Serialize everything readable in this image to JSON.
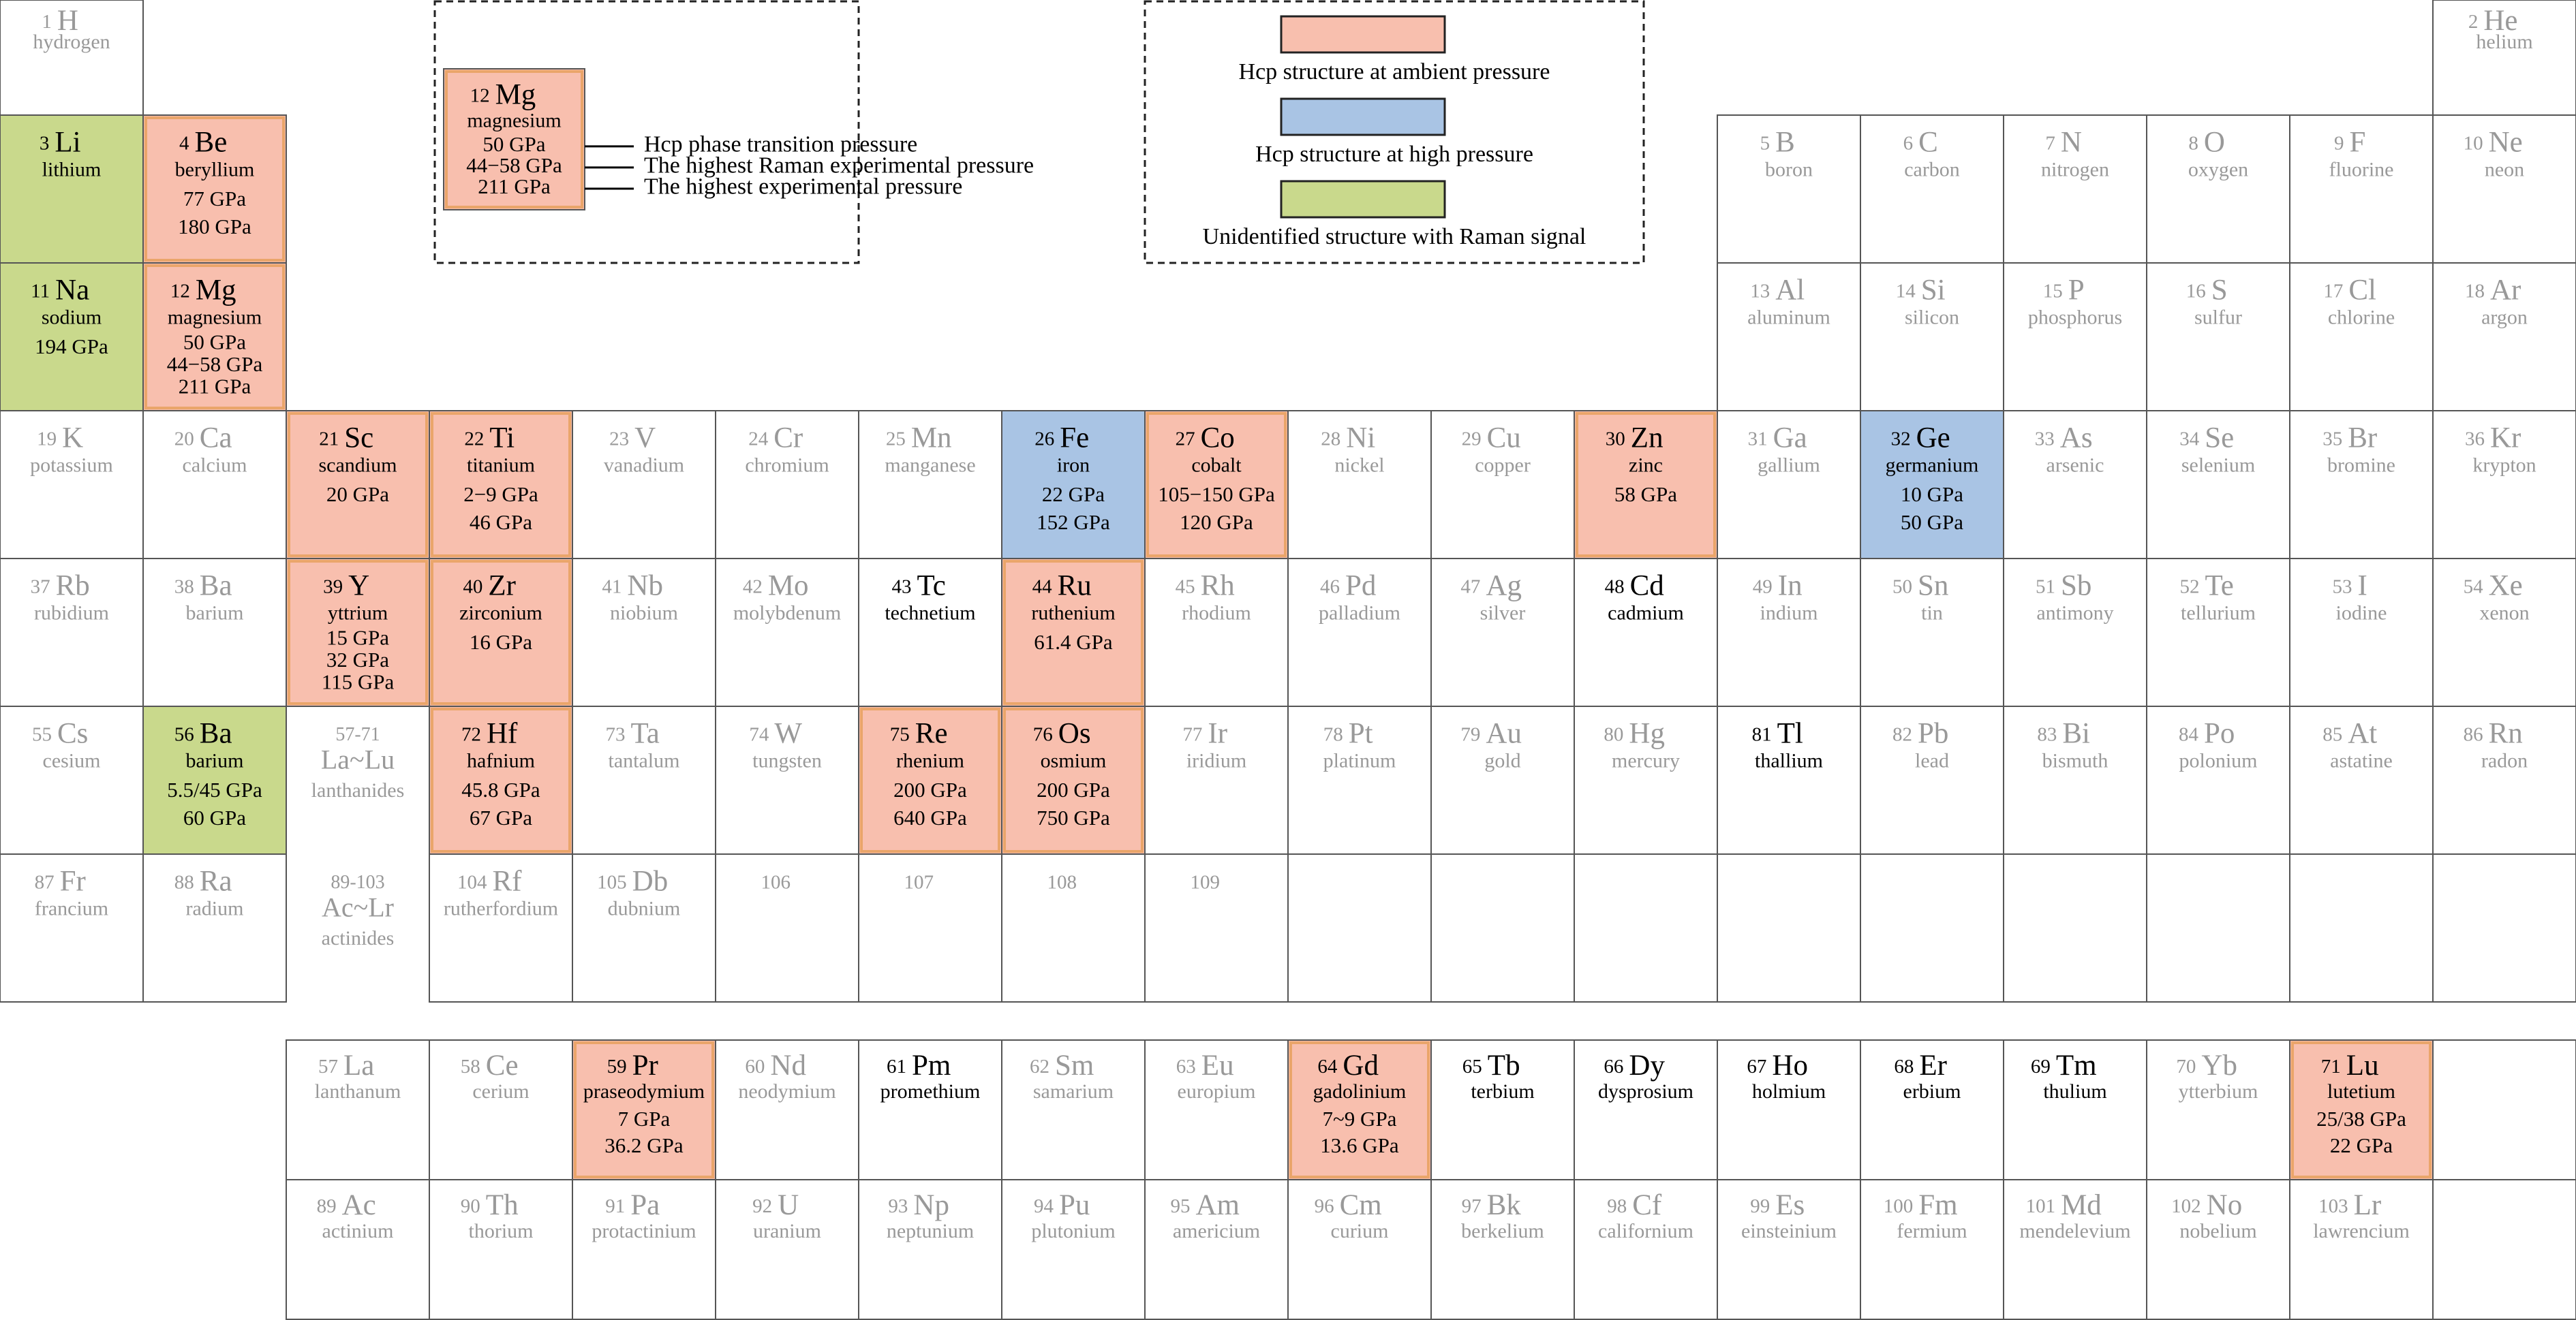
{
  "legend": {
    "sample": {
      "z": 12,
      "symbol": "Mg",
      "name": "magnesium",
      "pressures": [
        "50 GPa",
        "44−58 GPa",
        "211 GPa"
      ],
      "fill": "#f8bfae"
    },
    "callouts": [
      "Hcp phase transition pressure",
      "The highest Raman experimental pressure",
      "The highest experimental pressure"
    ],
    "items": [
      {
        "color": "#f8bfae",
        "label": "Hcp structure at ambient pressure"
      },
      {
        "color": "#a9c4e4",
        "label": "Hcp structure at high pressure"
      },
      {
        "color": "#c9d98c",
        "label": "Unidentified structure with Raman signal"
      }
    ]
  },
  "elements": [
    {
      "z": 1,
      "symbol": "H",
      "name": "hydrogen"
    },
    {
      "z": 2,
      "symbol": "He",
      "name": "helium"
    },
    {
      "z": 3,
      "symbol": "Li",
      "name": "lithium",
      "fill": "#c9d98c"
    },
    {
      "z": 4,
      "symbol": "Be",
      "name": "beryllium",
      "pressures": [
        "77 GPa",
        "180 GPa"
      ],
      "fill": "#f8bfae"
    },
    {
      "z": 5,
      "symbol": "B",
      "name": "boron"
    },
    {
      "z": 6,
      "symbol": "C",
      "name": "carbon"
    },
    {
      "z": 7,
      "symbol": "N",
      "name": "nitrogen"
    },
    {
      "z": 8,
      "symbol": "O",
      "name": "oxygen"
    },
    {
      "z": 9,
      "symbol": "F",
      "name": "fluorine"
    },
    {
      "z": 10,
      "symbol": "Ne",
      "name": "neon"
    },
    {
      "z": 11,
      "symbol": "Na",
      "name": "sodium",
      "pressures": [
        "194 GPa"
      ],
      "fill": "#c9d98c"
    },
    {
      "z": 12,
      "symbol": "Mg",
      "name": "magnesium",
      "pressures": [
        "50 GPa",
        "44−58 GPa",
        "211 GPa"
      ],
      "fill": "#f8bfae"
    },
    {
      "z": 13,
      "symbol": "Al",
      "name": "aluminum"
    },
    {
      "z": 14,
      "symbol": "Si",
      "name": "silicon"
    },
    {
      "z": 15,
      "symbol": "P",
      "name": "phosphorus"
    },
    {
      "z": 16,
      "symbol": "S",
      "name": "sulfur"
    },
    {
      "z": 17,
      "symbol": "Cl",
      "name": "chlorine"
    },
    {
      "z": 18,
      "symbol": "Ar",
      "name": "argon"
    },
    {
      "z": 19,
      "symbol": "K",
      "name": "potassium"
    },
    {
      "z": 20,
      "symbol": "Ca",
      "name": "calcium"
    },
    {
      "z": 21,
      "symbol": "Sc",
      "name": "scandium",
      "pressures": [
        "20 GPa"
      ],
      "fill": "#f8bfae"
    },
    {
      "z": 22,
      "symbol": "Ti",
      "name": "titanium",
      "pressures": [
        "2−9 GPa",
        "46 GPa"
      ],
      "fill": "#f8bfae"
    },
    {
      "z": 23,
      "symbol": "V",
      "name": "vanadium"
    },
    {
      "z": 24,
      "symbol": "Cr",
      "name": "chromium"
    },
    {
      "z": 25,
      "symbol": "Mn",
      "name": "manganese"
    },
    {
      "z": 26,
      "symbol": "Fe",
      "name": "iron",
      "pressures": [
        "22 GPa",
        "152 GPa"
      ],
      "fill": "#a9c4e4"
    },
    {
      "z": 27,
      "symbol": "Co",
      "name": "cobalt",
      "pressures": [
        "105−150 GPa",
        "120 GPa"
      ],
      "fill": "#f8bfae"
    },
    {
      "z": 28,
      "symbol": "Ni",
      "name": "nickel"
    },
    {
      "z": 29,
      "symbol": "Cu",
      "name": "copper"
    },
    {
      "z": 30,
      "symbol": "Zn",
      "name": "zinc",
      "pressures": [
        "58 GPa"
      ],
      "fill": "#f8bfae"
    },
    {
      "z": 31,
      "symbol": "Ga",
      "name": "gallium"
    },
    {
      "z": 32,
      "symbol": "Ge",
      "name": "germanium",
      "pressures": [
        "10 GPa",
        "50 GPa"
      ],
      "fill": "#a9c4e4"
    },
    {
      "z": 33,
      "symbol": "As",
      "name": "arsenic"
    },
    {
      "z": 34,
      "symbol": "Se",
      "name": "selenium"
    },
    {
      "z": 35,
      "symbol": "Br",
      "name": "bromine"
    },
    {
      "z": 36,
      "symbol": "Kr",
      "name": "krypton"
    },
    {
      "z": 37,
      "symbol": "Rb",
      "name": "rubidium"
    },
    {
      "z": 38,
      "symbol": "Ba",
      "name": "barium"
    },
    {
      "z": 39,
      "symbol": "Y",
      "name": "yttrium",
      "pressures": [
        "15 GPa",
        "32 GPa",
        "115 GPa"
      ],
      "fill": "#f8bfae"
    },
    {
      "z": 40,
      "symbol": "Zr",
      "name": "zirconium",
      "pressures": [
        "16 GPa"
      ],
      "fill": "#f8bfae"
    },
    {
      "z": 41,
      "symbol": "Nb",
      "name": "niobium"
    },
    {
      "z": 42,
      "symbol": "Mo",
      "name": "molybdenum"
    },
    {
      "z": 43,
      "symbol": "Tc",
      "name": "technetium",
      "ink": "#000000"
    },
    {
      "z": 44,
      "symbol": "Ru",
      "name": "ruthenium",
      "pressures": [
        "61.4 GPa"
      ],
      "fill": "#f8bfae"
    },
    {
      "z": 45,
      "symbol": "Rh",
      "name": "rhodium"
    },
    {
      "z": 46,
      "symbol": "Pd",
      "name": "palladium"
    },
    {
      "z": 47,
      "symbol": "Ag",
      "name": "silver"
    },
    {
      "z": 48,
      "symbol": "Cd",
      "name": "cadmium",
      "ink": "#000000"
    },
    {
      "z": 49,
      "symbol": "In",
      "name": "indium"
    },
    {
      "z": 50,
      "symbol": "Sn",
      "name": "tin"
    },
    {
      "z": 51,
      "symbol": "Sb",
      "name": "antimony"
    },
    {
      "z": 52,
      "symbol": "Te",
      "name": "tellurium"
    },
    {
      "z": 53,
      "symbol": "I",
      "name": "iodine"
    },
    {
      "z": 54,
      "symbol": "Xe",
      "name": "xenon"
    },
    {
      "z": 55,
      "symbol": "Cs",
      "name": "cesium"
    },
    {
      "z": 56,
      "symbol": "Ba",
      "name": "barium",
      "pressures": [
        "5.5/45 GPa",
        "60 GPa"
      ],
      "fill": "#c9d98c"
    },
    {
      "z": 72,
      "symbol": "Hf",
      "name": "hafnium",
      "pressures": [
        "45.8 GPa",
        "67 GPa"
      ],
      "fill": "#f8bfae"
    },
    {
      "z": 73,
      "symbol": "Ta",
      "name": "tantalum"
    },
    {
      "z": 74,
      "symbol": "W",
      "name": "tungsten"
    },
    {
      "z": 75,
      "symbol": "Re",
      "name": "rhenium",
      "pressures": [
        "200 GPa",
        "640 GPa"
      ],
      "fill": "#f8bfae"
    },
    {
      "z": 76,
      "symbol": "Os",
      "name": "osmium",
      "pressures": [
        "200 GPa",
        "750 GPa"
      ],
      "fill": "#f8bfae"
    },
    {
      "z": 77,
      "symbol": "Ir",
      "name": "iridium"
    },
    {
      "z": 78,
      "symbol": "Pt",
      "name": "platinum"
    },
    {
      "z": 79,
      "symbol": "Au",
      "name": "gold"
    },
    {
      "z": 80,
      "symbol": "Hg",
      "name": "mercury"
    },
    {
      "z": 81,
      "symbol": "Tl",
      "name": "thallium",
      "ink": "#000000"
    },
    {
      "z": 82,
      "symbol": "Pb",
      "name": "lead"
    },
    {
      "z": 83,
      "symbol": "Bi",
      "name": "bismuth"
    },
    {
      "z": 84,
      "symbol": "Po",
      "name": "polonium"
    },
    {
      "z": 85,
      "symbol": "At",
      "name": "astatine"
    },
    {
      "z": 86,
      "symbol": "Rn",
      "name": "radon"
    },
    {
      "z": 87,
      "symbol": "Fr",
      "name": "francium"
    },
    {
      "z": 88,
      "symbol": "Ra",
      "name": "radium"
    },
    {
      "z": 104,
      "symbol": "Rf",
      "name": "rutherfordium"
    },
    {
      "z": 105,
      "symbol": "Db",
      "name": "dubnium"
    },
    {
      "z": 106
    },
    {
      "z": 107
    },
    {
      "z": 108
    },
    {
      "z": 109
    },
    {
      "z": 57,
      "symbol": "La",
      "name": "lanthanum"
    },
    {
      "z": 58,
      "symbol": "Ce",
      "name": "cerium"
    },
    {
      "z": 59,
      "symbol": "Pr",
      "name": "praseodymium",
      "pressures": [
        "7 GPa",
        "36.2 GPa"
      ],
      "fill": "#f8bfae"
    },
    {
      "z": 60,
      "symbol": "Nd",
      "name": "neodymium"
    },
    {
      "z": 61,
      "symbol": "Pm",
      "name": "promethium",
      "ink": "#000000"
    },
    {
      "z": 62,
      "symbol": "Sm",
      "name": "samarium"
    },
    {
      "z": 63,
      "symbol": "Eu",
      "name": "europium"
    },
    {
      "z": 64,
      "symbol": "Gd",
      "name": "gadolinium",
      "pressures": [
        "7~9 GPa",
        "13.6 GPa"
      ],
      "fill": "#f8bfae"
    },
    {
      "z": 65,
      "symbol": "Tb",
      "name": "terbium",
      "ink": "#000000"
    },
    {
      "z": 66,
      "symbol": "Dy",
      "name": "dysprosium",
      "ink": "#000000"
    },
    {
      "z": 67,
      "symbol": "Ho",
      "name": "holmium",
      "ink": "#000000"
    },
    {
      "z": 68,
      "symbol": "Er",
      "name": "erbium",
      "ink": "#000000"
    },
    {
      "z": 69,
      "symbol": "Tm",
      "name": "thulium",
      "ink": "#000000"
    },
    {
      "z": 70,
      "symbol": "Yb",
      "name": "ytterbium"
    },
    {
      "z": 71,
      "symbol": "Lu",
      "name": "lutetium",
      "pressures": [
        "25/38 GPa",
        "22 GPa"
      ],
      "fill": "#f8bfae"
    },
    {
      "z": 89,
      "symbol": "Ac",
      "name": "actinium"
    },
    {
      "z": 90,
      "symbol": "Th",
      "name": "thorium"
    },
    {
      "z": 91,
      "symbol": "Pa",
      "name": "protactinium"
    },
    {
      "z": 92,
      "symbol": "U",
      "name": "uranium"
    },
    {
      "z": 93,
      "symbol": "Np",
      "name": "neptunium"
    },
    {
      "z": 94,
      "symbol": "Pu",
      "name": "plutonium"
    },
    {
      "z": 95,
      "symbol": "Am",
      "name": "americium"
    },
    {
      "z": 96,
      "symbol": "Cm",
      "name": "curium"
    },
    {
      "z": 97,
      "symbol": "Bk",
      "name": "berkelium"
    },
    {
      "z": 98,
      "symbol": "Cf",
      "name": "californium"
    },
    {
      "z": 99,
      "symbol": "Es",
      "name": "einsteinium"
    },
    {
      "z": 100,
      "symbol": "Fm",
      "name": "fermium"
    },
    {
      "z": 101,
      "symbol": "Md",
      "name": "mendelevium"
    },
    {
      "z": 102,
      "symbol": "No",
      "name": "nobelium"
    },
    {
      "z": 103,
      "symbol": "Lr",
      "name": "lawrencium"
    }
  ],
  "series": [
    {
      "range": "57-71",
      "symbol": "La~Lu",
      "name": "lanthanides"
    },
    {
      "range": "89-103",
      "symbol": "Ac~Lr",
      "name": "actinides"
    }
  ]
}
